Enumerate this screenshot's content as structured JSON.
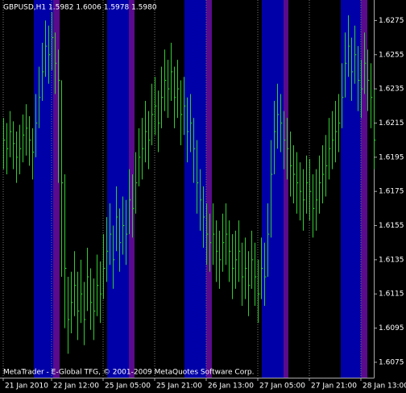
{
  "chart_data": {
    "type": "ohlc",
    "title": "GBPUSD,H1  1.5982 1.6006 1.5978 1.5980",
    "footer": "MetaTrader - E-Global TFG, © 2001-2009 MetaQuotes Software Corp.",
    "color": "#33cc33",
    "grid": "x",
    "ylim": [
      1.6066,
      1.6287
    ],
    "yticks": [
      1.6275,
      1.6255,
      1.6235,
      1.6215,
      1.6195,
      1.6175,
      1.6155,
      1.6135,
      1.6115,
      1.6095,
      1.6075
    ],
    "categories": [
      "21 Jan 2010",
      null,
      null,
      null,
      null,
      null,
      null,
      null,
      null,
      null,
      null,
      null,
      null,
      null,
      null,
      "22 Jan 12:00",
      null,
      null,
      null,
      null,
      null,
      null,
      null,
      null,
      null,
      null,
      null,
      null,
      null,
      null,
      null,
      "25 Jan 05:00",
      null,
      null,
      null,
      null,
      null,
      null,
      null,
      null,
      null,
      null,
      null,
      null,
      null,
      null,
      null,
      "25 Jan 21:00",
      null,
      null,
      null,
      null,
      null,
      null,
      null,
      null,
      null,
      null,
      null,
      null,
      null,
      null,
      null,
      "26 Jan 13:00",
      null,
      null,
      null,
      null,
      null,
      null,
      null,
      null,
      null,
      null,
      null,
      null,
      null,
      null,
      null,
      "27 Jan 05:00",
      null,
      null,
      null,
      null,
      null,
      null,
      null,
      null,
      null,
      null,
      null,
      null,
      null,
      null,
      null,
      "27 Jan 21:00",
      null,
      null,
      null,
      null,
      null,
      null,
      null,
      null,
      null,
      null,
      null,
      null,
      null,
      null,
      null,
      "28 Jan 13:00",
      null,
      null,
      null,
      null
    ],
    "high": [
      1.6218,
      1.6215,
      1.6222,
      1.6216,
      1.621,
      1.6214,
      1.622,
      1.6226,
      1.6219,
      1.6212,
      1.6232,
      1.6248,
      1.6262,
      1.6275,
      1.6272,
      1.628,
      1.6268,
      1.6258,
      1.624,
      1.6185,
      1.6125,
      1.6128,
      1.614,
      1.6128,
      1.6135,
      1.6122,
      1.6142,
      1.613,
      1.6124,
      1.6138,
      1.6134,
      1.615,
      1.616,
      1.6168,
      1.6155,
      1.6178,
      1.6165,
      1.6172,
      1.617,
      1.6188,
      1.6185,
      1.6198,
      1.6212,
      1.6218,
      1.6228,
      1.6222,
      1.6238,
      1.6242,
      1.6234,
      1.6248,
      1.6258,
      1.6252,
      1.6262,
      1.6248,
      1.6252,
      1.624,
      1.6242,
      1.623,
      1.6232,
      1.6218,
      1.6205,
      1.6188,
      1.6178,
      1.6168,
      1.6162,
      1.6168,
      1.6158,
      1.6152,
      1.6162,
      1.6168,
      1.6158,
      1.615,
      1.6152,
      1.6158,
      1.6145,
      1.6148,
      1.614,
      1.6152,
      1.6145,
      1.6135,
      1.6148,
      1.6145,
      1.6168,
      1.6205,
      1.6228,
      1.6238,
      1.6232,
      1.6222,
      1.6218,
      1.621,
      1.6202,
      1.6198,
      1.6192,
      1.6188,
      1.6196,
      1.6194,
      1.6185,
      1.6188,
      1.6196,
      1.6202,
      1.6208,
      1.6218,
      1.6222,
      1.6228,
      1.6232,
      1.625,
      1.6268,
      1.6278,
      1.6265,
      1.6272,
      1.626,
      1.6252,
      1.6268,
      1.6258,
      1.625,
      1.6235
    ],
    "low": [
      1.6188,
      1.6185,
      1.6195,
      1.6188,
      1.618,
      1.6185,
      1.6192,
      1.6196,
      1.619,
      1.6182,
      1.6195,
      1.6212,
      1.6228,
      1.6242,
      1.6238,
      1.6246,
      1.6232,
      1.618,
      1.6125,
      1.6095,
      1.608,
      1.6092,
      1.6102,
      1.6088,
      1.6098,
      1.6085,
      1.6105,
      1.6094,
      1.6088,
      1.6102,
      1.6098,
      1.6112,
      1.6122,
      1.6132,
      1.6118,
      1.614,
      1.6128,
      1.6138,
      1.6132,
      1.615,
      1.6148,
      1.6162,
      1.6178,
      1.6182,
      1.6192,
      1.6188,
      1.6202,
      1.6208,
      1.6198,
      1.6212,
      1.6222,
      1.6218,
      1.6228,
      1.6212,
      1.6218,
      1.6202,
      1.6208,
      1.6192,
      1.6198,
      1.618,
      1.6162,
      1.6152,
      1.6142,
      1.6132,
      1.6128,
      1.6132,
      1.6122,
      1.6118,
      1.6128,
      1.6132,
      1.6122,
      1.6112,
      1.6118,
      1.6122,
      1.6108,
      1.6112,
      1.6102,
      1.6118,
      1.6108,
      1.6098,
      1.6112,
      1.6108,
      1.6125,
      1.6148,
      1.6185,
      1.62,
      1.6198,
      1.6188,
      1.6182,
      1.6172,
      1.6168,
      1.6162,
      1.6158,
      1.6152,
      1.6162,
      1.6158,
      1.6148,
      1.6152,
      1.6162,
      1.6168,
      1.6172,
      1.6182,
      1.6188,
      1.6192,
      1.6198,
      1.6212,
      1.623,
      1.6242,
      1.6228,
      1.6238,
      1.6222,
      1.6218,
      1.6232,
      1.6222,
      1.6212,
      1.6188
    ],
    "close": [
      1.6205,
      1.62,
      1.621,
      1.6203,
      1.6195,
      1.62,
      1.6208,
      1.6212,
      1.6205,
      1.6198,
      1.6215,
      1.623,
      1.6245,
      1.626,
      1.6255,
      1.6265,
      1.625,
      1.624,
      1.618,
      1.613,
      1.61,
      1.611,
      1.612,
      1.6105,
      1.6115,
      1.61,
      1.6125,
      1.611,
      1.6105,
      1.612,
      1.6115,
      1.613,
      1.614,
      1.615,
      1.6135,
      1.616,
      1.6145,
      1.6155,
      1.615,
      1.617,
      1.6165,
      1.618,
      1.6195,
      1.62,
      1.621,
      1.6205,
      1.622,
      1.6225,
      1.6215,
      1.623,
      1.624,
      1.6235,
      1.6245,
      1.623,
      1.6235,
      1.622,
      1.6225,
      1.621,
      1.6215,
      1.62,
      1.618,
      1.617,
      1.616,
      1.615,
      1.6145,
      1.615,
      1.614,
      1.6135,
      1.6145,
      1.615,
      1.614,
      1.613,
      1.6135,
      1.614,
      1.6125,
      1.613,
      1.612,
      1.6135,
      1.6125,
      1.6115,
      1.613,
      1.6125,
      1.615,
      1.6185,
      1.621,
      1.622,
      1.6215,
      1.6205,
      1.62,
      1.619,
      1.6185,
      1.618,
      1.6175,
      1.617,
      1.618,
      1.6175,
      1.6165,
      1.617,
      1.618,
      1.6185,
      1.619,
      1.62,
      1.6205,
      1.621,
      1.6215,
      1.623,
      1.625,
      1.626,
      1.6245,
      1.6255,
      1.624,
      1.6235,
      1.625,
      1.624,
      1.623,
      1.6205
    ]
  }
}
